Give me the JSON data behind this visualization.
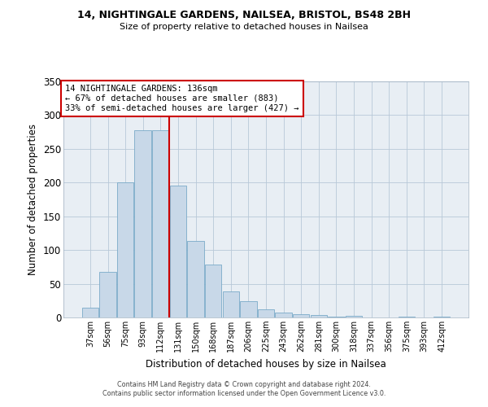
{
  "title1": "14, NIGHTINGALE GARDENS, NAILSEA, BRISTOL, BS48 2BH",
  "title2": "Size of property relative to detached houses in Nailsea",
  "xlabel": "Distribution of detached houses by size in Nailsea",
  "ylabel": "Number of detached properties",
  "bar_color": "#c8d8e8",
  "bar_edgecolor": "#7aaac8",
  "bin_labels": [
    "37sqm",
    "56sqm",
    "75sqm",
    "93sqm",
    "112sqm",
    "131sqm",
    "150sqm",
    "168sqm",
    "187sqm",
    "206sqm",
    "225sqm",
    "243sqm",
    "262sqm",
    "281sqm",
    "300sqm",
    "318sqm",
    "337sqm",
    "356sqm",
    "375sqm",
    "393sqm",
    "412sqm"
  ],
  "bar_heights": [
    15,
    68,
    200,
    278,
    278,
    196,
    114,
    78,
    39,
    24,
    12,
    7,
    5,
    4,
    1,
    2,
    0,
    0,
    1,
    0,
    1
  ],
  "ylim": [
    0,
    350
  ],
  "yticks": [
    0,
    50,
    100,
    150,
    200,
    250,
    300,
    350
  ],
  "vline_color": "#cc0000",
  "annotation_title": "14 NIGHTINGALE GARDENS: 136sqm",
  "annotation_line1": "← 67% of detached houses are smaller (883)",
  "annotation_line2": "33% of semi-detached houses are larger (427) →",
  "annotation_box_color": "#ffffff",
  "annotation_box_edgecolor": "#cc0000",
  "footer1": "Contains HM Land Registry data © Crown copyright and database right 2024.",
  "footer2": "Contains public sector information licensed under the Open Government Licence v3.0.",
  "background_color": "#e8eef4",
  "plot_background": "#ffffff"
}
